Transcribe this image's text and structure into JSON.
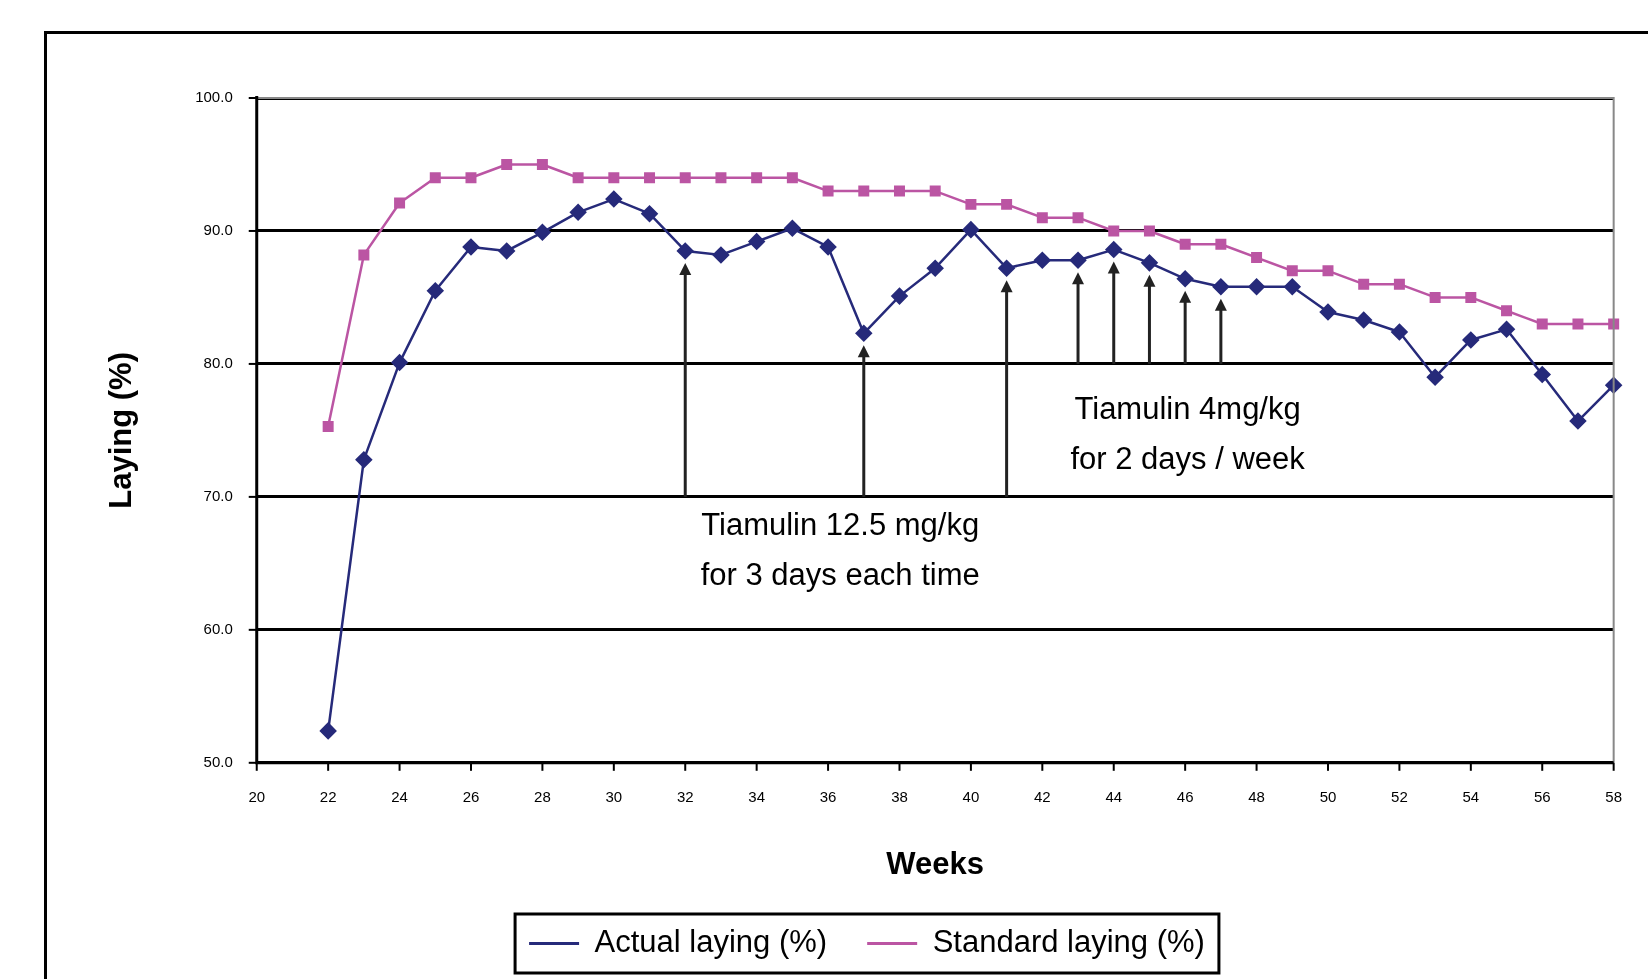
{
  "chart_data": {
    "type": "line",
    "xlabel": "Weeks",
    "ylabel": "Laying (%)",
    "xlim": [
      20,
      58
    ],
    "xticks": [
      20,
      22,
      24,
      26,
      28,
      30,
      32,
      34,
      36,
      38,
      40,
      42,
      44,
      46,
      48,
      50,
      52,
      54,
      56,
      58
    ],
    "ylim": [
      50,
      100
    ],
    "yticks": [
      {
        "value": 50,
        "label": "50.0"
      },
      {
        "value": 60,
        "label": "60.0"
      },
      {
        "value": 70,
        "label": "70.0"
      },
      {
        "value": 80,
        "label": "80.0"
      },
      {
        "value": 90,
        "label": "90.0"
      },
      {
        "value": 100,
        "label": "100.0"
      }
    ],
    "grid": "y",
    "legend": "bottom",
    "line_style": "solid",
    "series": [
      {
        "name": "Actual laying (%)",
        "color": "#262a7a",
        "marker": "diamond",
        "x": [
          22,
          23,
          24,
          25,
          26,
          27,
          28,
          29,
          30,
          31,
          32,
          33,
          34,
          35,
          36,
          37,
          38,
          39,
          40,
          41,
          42,
          43,
          44,
          45,
          46,
          47,
          48,
          49,
          50,
          51,
          52,
          53,
          54,
          55,
          56,
          57,
          58
        ],
        "values": [
          52.4,
          72.8,
          80.1,
          85.5,
          88.8,
          88.5,
          89.9,
          91.4,
          92.4,
          91.3,
          88.5,
          88.2,
          89.2,
          90.2,
          88.8,
          82.3,
          85.1,
          87.2,
          90.1,
          87.2,
          87.8,
          87.8,
          88.6,
          87.6,
          86.4,
          85.8,
          85.8,
          85.8,
          83.9,
          83.3,
          82.4,
          79.0,
          81.8,
          82.6,
          79.2,
          75.7,
          78.4
        ]
      },
      {
        "name": "Standard laying (%)",
        "color": "#bb55a3",
        "marker": "square",
        "x": [
          22,
          23,
          24,
          25,
          26,
          27,
          28,
          29,
          30,
          31,
          32,
          33,
          34,
          35,
          36,
          37,
          38,
          39,
          40,
          41,
          42,
          43,
          44,
          45,
          46,
          47,
          48,
          49,
          50,
          51,
          52,
          53,
          54,
          55,
          56,
          57,
          58
        ],
        "values": [
          75.3,
          88.2,
          92.1,
          94,
          94,
          95,
          95,
          94,
          94,
          94,
          94,
          94,
          94,
          94,
          93,
          93,
          93,
          93,
          92,
          92,
          91,
          91,
          90,
          90,
          89,
          89,
          88,
          87,
          87,
          86,
          86,
          85,
          85,
          84,
          83,
          83,
          83
        ]
      }
    ],
    "annotations": [
      "Tiamulin 12.5 mg/kg\nfor 3 days each time",
      "Tiamulin 4mg/kg\nfor 2 days / week"
    ]
  }
}
